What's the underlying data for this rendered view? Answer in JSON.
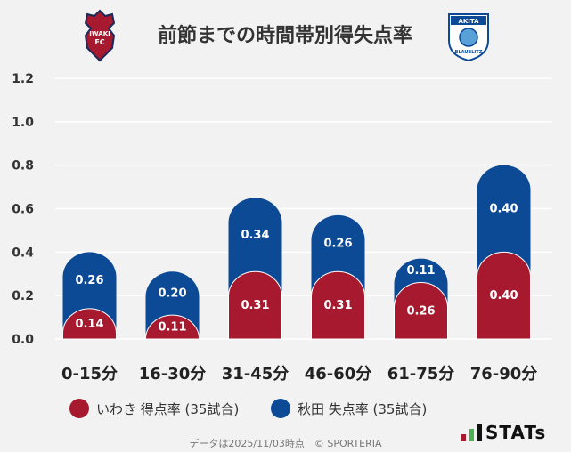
{
  "title": "前節までの時間帯別得失点率",
  "logos": {
    "left_text_1": "IWAKI",
    "left_text_2": "FC",
    "right_text_1": "AKITA",
    "right_text_2": "BLAUBLITZ"
  },
  "colors": {
    "home": "#a6192e",
    "away": "#0c4a96",
    "background": "#f2f2f2",
    "grid": "#ffffff"
  },
  "legend": {
    "home_label": "いわき 得点率 (35試合)",
    "away_label": "秋田 失点率 (35試合)"
  },
  "footer": "データは2025/11/03時点　© SPORTERIA",
  "brand": "STATs",
  "chart_data": {
    "type": "bar",
    "stacked": true,
    "categories": [
      "0-15分",
      "16-30分",
      "31-45分",
      "46-60分",
      "61-75分",
      "76-90分"
    ],
    "series": [
      {
        "name": "いわき 得点率 (35試合)",
        "values": [
          0.14,
          0.11,
          0.31,
          0.31,
          0.26,
          0.4
        ]
      },
      {
        "name": "秋田 失点率 (35試合)",
        "values": [
          0.26,
          0.2,
          0.34,
          0.26,
          0.11,
          0.4
        ]
      }
    ],
    "yticks": [
      "0.0",
      "0.2",
      "0.4",
      "0.6",
      "0.8",
      "1.0",
      "1.2"
    ],
    "ylim": [
      0,
      1.2
    ],
    "grid": true,
    "legend_position": "bottom"
  }
}
